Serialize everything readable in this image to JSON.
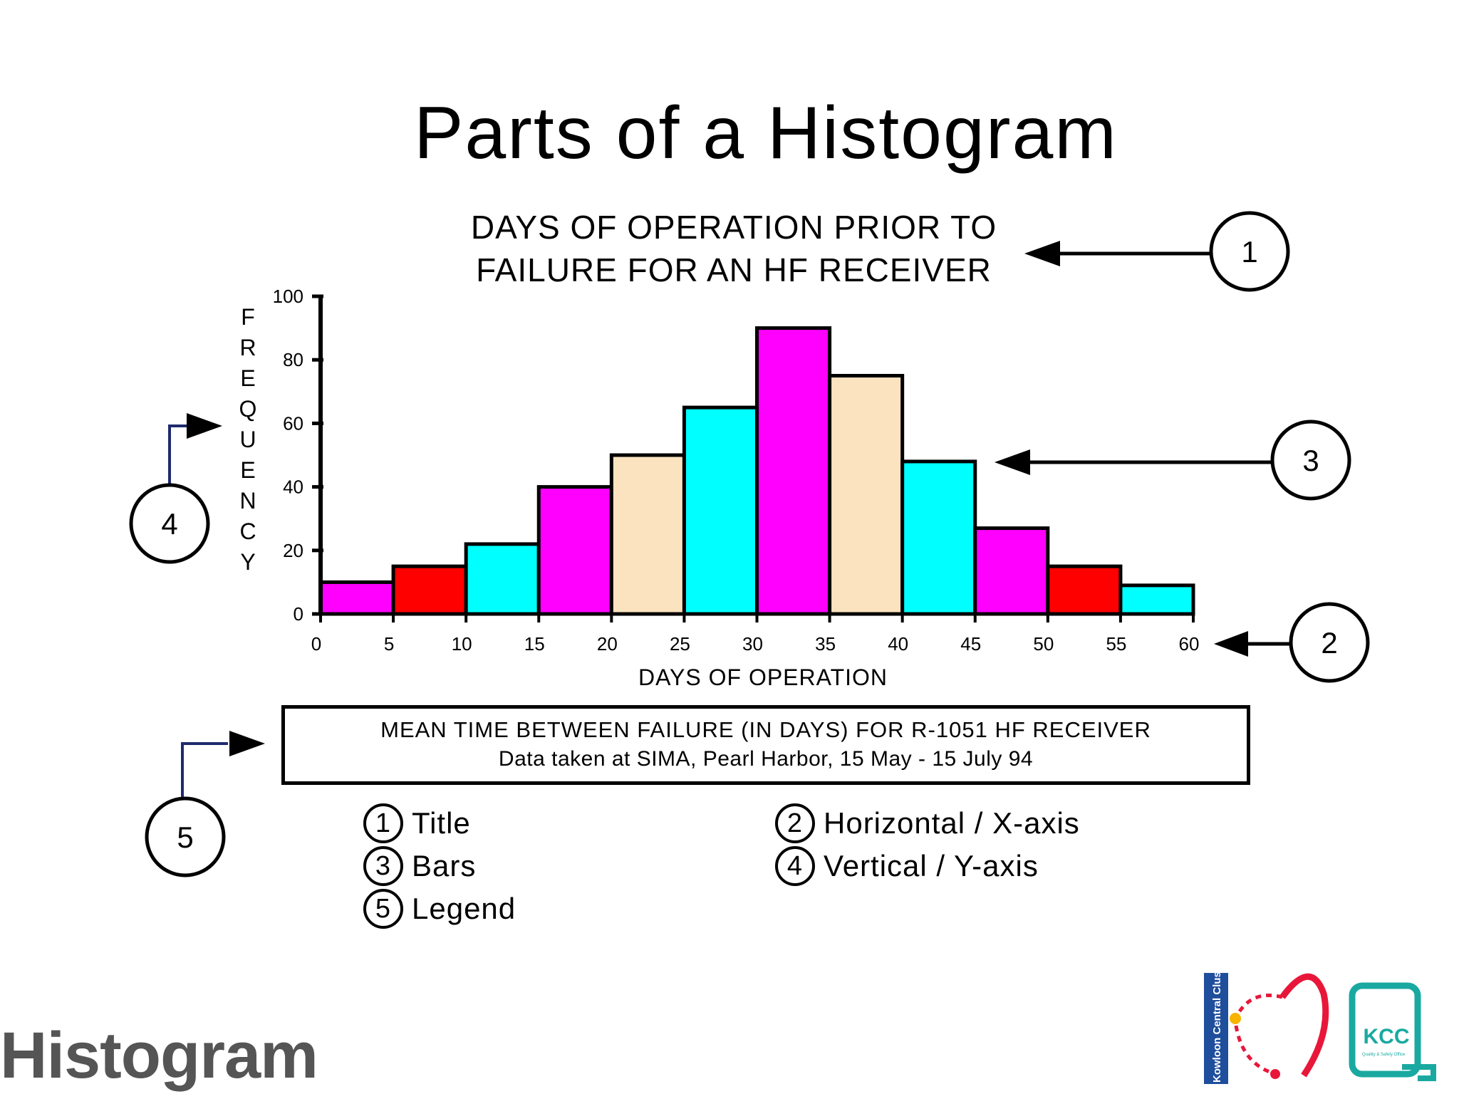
{
  "page": {
    "title": "Parts of a Histogram",
    "footer_word": "Histogram"
  },
  "chart_data": {
    "type": "bar",
    "title_lines": [
      "DAYS OF OPERATION PRIOR TO",
      "FAILURE FOR AN HF RECEIVER"
    ],
    "xlabel": "DAYS OF OPERATION",
    "ylabel": "FREQUENCY",
    "x_ticks": [
      0,
      5,
      10,
      15,
      20,
      25,
      30,
      35,
      40,
      45,
      50,
      55,
      60
    ],
    "y_ticks": [
      0,
      20,
      40,
      60,
      80,
      100
    ],
    "xlim": [
      0,
      60
    ],
    "ylim": [
      0,
      100
    ],
    "bins": [
      {
        "start": 0,
        "end": 5,
        "value": 10,
        "color": "#ff00ff"
      },
      {
        "start": 5,
        "end": 10,
        "value": 15,
        "color": "#ff0000"
      },
      {
        "start": 10,
        "end": 15,
        "value": 22,
        "color": "#00ffff"
      },
      {
        "start": 15,
        "end": 20,
        "value": 40,
        "color": "#ff00ff"
      },
      {
        "start": 20,
        "end": 25,
        "value": 50,
        "color": "#fbe3bf"
      },
      {
        "start": 25,
        "end": 30,
        "value": 65,
        "color": "#00ffff"
      },
      {
        "start": 30,
        "end": 35,
        "value": 90,
        "color": "#ff00ff"
      },
      {
        "start": 35,
        "end": 40,
        "value": 75,
        "color": "#fbe3bf"
      },
      {
        "start": 40,
        "end": 45,
        "value": 48,
        "color": "#00ffff"
      },
      {
        "start": 45,
        "end": 50,
        "value": 27,
        "color": "#ff00ff"
      },
      {
        "start": 50,
        "end": 55,
        "value": 15,
        "color": "#ff0000"
      },
      {
        "start": 55,
        "end": 60,
        "value": 9,
        "color": "#00ffff"
      }
    ],
    "grid": false,
    "legend": {
      "line1": "MEAN TIME BETWEEN FAILURE (IN DAYS) FOR R-1051 HF RECEIVER",
      "line2": "Data taken at SIMA, Pearl Harbor, 15 May - 15 July 94"
    }
  },
  "callouts": [
    {
      "num": "1",
      "target": "title"
    },
    {
      "num": "2",
      "target": "x-axis"
    },
    {
      "num": "3",
      "target": "bars"
    },
    {
      "num": "4",
      "target": "y-axis"
    },
    {
      "num": "5",
      "target": "legend"
    }
  ],
  "key": [
    {
      "num": "1",
      "label": "Title"
    },
    {
      "num": "2",
      "label": "Horizontal / X-axis"
    },
    {
      "num": "3",
      "label": "Bars"
    },
    {
      "num": "4",
      "label": "Vertical / Y-axis"
    },
    {
      "num": "5",
      "label": "Legend"
    }
  ],
  "logos": {
    "left_text": "Kowloon Central Cluster",
    "right_text": "KCC",
    "right_subtext": "Quality & Safety Office"
  },
  "colors": {
    "magenta": "#ff00ff",
    "red": "#ff0000",
    "cyan": "#00ffff",
    "tan": "#fbe3bf",
    "logo_red": "#e8173a",
    "logo_teal": "#1aa9a0",
    "logo_blue": "#1f4e9c"
  }
}
